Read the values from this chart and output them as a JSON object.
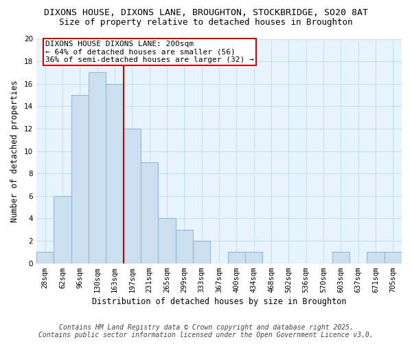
{
  "title_line1": "DIXONS HOUSE, DIXONS LANE, BROUGHTON, STOCKBRIDGE, SO20 8AT",
  "title_line2": "Size of property relative to detached houses in Broughton",
  "xlabel": "Distribution of detached houses by size in Broughton",
  "ylabel": "Number of detached properties",
  "bin_labels": [
    "28sqm",
    "62sqm",
    "96sqm",
    "130sqm",
    "163sqm",
    "197sqm",
    "231sqm",
    "265sqm",
    "299sqm",
    "333sqm",
    "367sqm",
    "400sqm",
    "434sqm",
    "468sqm",
    "502sqm",
    "536sqm",
    "570sqm",
    "603sqm",
    "637sqm",
    "671sqm",
    "705sqm"
  ],
  "bar_heights": [
    1,
    6,
    15,
    17,
    16,
    12,
    9,
    4,
    3,
    2,
    0,
    1,
    1,
    0,
    0,
    0,
    0,
    1,
    0,
    1,
    1
  ],
  "bar_color": "#ccdff0",
  "bar_edgecolor": "#93b8d8",
  "vline_x_index": 4.5,
  "vline_color": "#cc0000",
  "annotation_text": "DIXONS HOUSE DIXONS LANE: 200sqm\n← 64% of detached houses are smaller (56)\n36% of semi-detached houses are larger (32) →",
  "annotation_box_edgecolor": "#cc0000",
  "ylim": [
    0,
    20
  ],
  "yticks": [
    0,
    2,
    4,
    6,
    8,
    10,
    12,
    14,
    16,
    18,
    20
  ],
  "grid_color": "#c8dff0",
  "plot_bg_color": "#e8f4fd",
  "outer_bg_color": "#ffffff",
  "footer_line1": "Contains HM Land Registry data © Crown copyright and database right 2025.",
  "footer_line2": "Contains public sector information licensed under the Open Government Licence v3.0.",
  "title_fontsize": 9.5,
  "subtitle_fontsize": 9.0,
  "axis_label_fontsize": 8.5,
  "tick_fontsize": 7.5,
  "annotation_fontsize": 8.0,
  "footer_fontsize": 7.0
}
